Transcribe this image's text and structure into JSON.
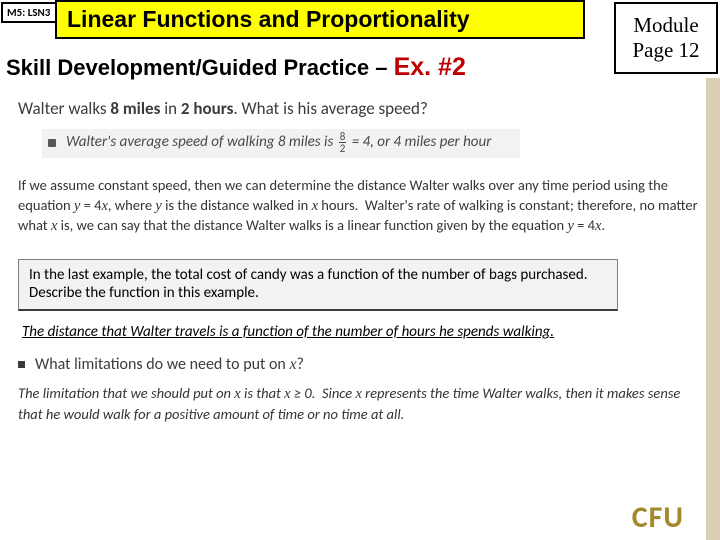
{
  "header": {
    "module_tag": "M5: LSN3",
    "title": "Linear Functions and Proportionality",
    "page_box_l1": "Module",
    "page_box_l2": "Page 12",
    "subtitle_pre": "Skill Development/Guided Practice – ",
    "subtitle_ex": "Ex. #2"
  },
  "q": {
    "lead": "Walter walks ",
    "miles": "8 miles",
    "mid": " in ",
    "hours": "2 hours",
    "tail": ".  What is his average speed?"
  },
  "ans": {
    "pre": "Walter's average speed of walking 8 miles is ",
    "num": "8",
    "den": "2",
    "post": " = 4, or 4 miles per hour"
  },
  "explain": {
    "text": "If we assume constant speed, then we can determine the distance Walter walks over any time period using the equation y = 4x, where y is the distance walked in x hours.  Walter's rate of walking is constant; therefore, no matter what x is, we can say that the distance Walter walks is a linear function given by the equation y = 4x."
  },
  "prompt": {
    "text": "In the last example, the total cost of candy was a function of the number of bags purchased.  Describe the function in this example."
  },
  "prompt_answer": "The distance that Walter travels is a function of the number of hours he spends walking.",
  "limq": {
    "pre": "What limitations do we need to put on ",
    "var": "x",
    "post": "?"
  },
  "lim_answer": {
    "text": "The limitation that we should put on x is that x ≥ 0.  Since x represents the time Walter walks, then it makes sense that he would walk for a positive amount of time or no time at all."
  },
  "cfu": "CFU",
  "colors": {
    "title_bg": "#ffff00",
    "ex_color": "#c00000",
    "cfu_color": "#a28a2c",
    "sidebar": "#d9d0b3",
    "grey_box": "#f2f2f2"
  }
}
